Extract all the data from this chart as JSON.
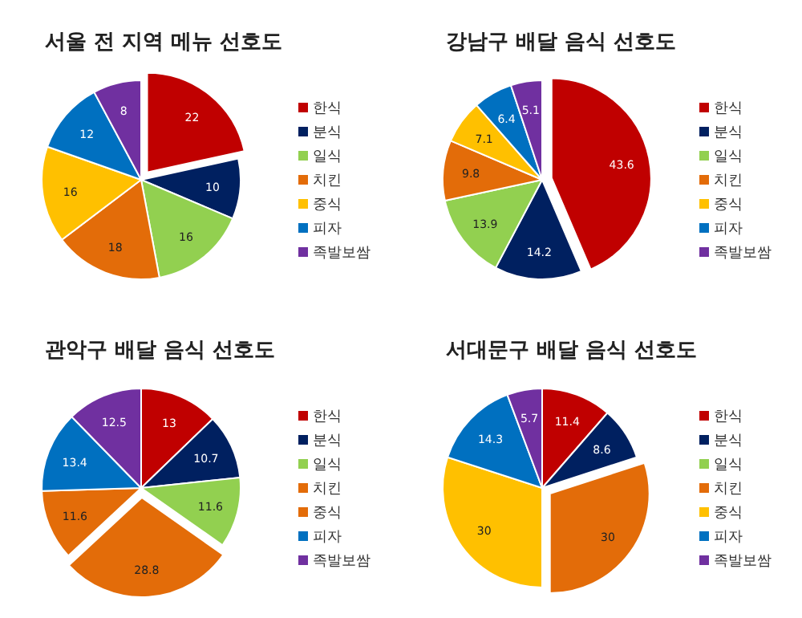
{
  "chart_data": [
    {
      "type": "pie",
      "title": "서울 전 지역 메뉴 선호도",
      "categories": [
        "한식",
        "분식",
        "일식",
        "치킨",
        "중식",
        "피자",
        "족발보쌈"
      ],
      "values": [
        22,
        10,
        16,
        18,
        16,
        12,
        8
      ],
      "colors": [
        "#c00000",
        "#002060",
        "#92d050",
        "#e36c09",
        "#ffc000",
        "#0070c0",
        "#7030a0"
      ],
      "data_labels": true,
      "legend": "right"
    },
    {
      "type": "pie",
      "title": "강남구 배달 음식 선호도",
      "categories": [
        "한식",
        "분식",
        "일식",
        "치킨",
        "중식",
        "피자",
        "족발보쌈"
      ],
      "values": [
        43.6,
        14.2,
        13.9,
        9.8,
        7.1,
        6.4,
        5.1
      ],
      "colors": [
        "#c00000",
        "#002060",
        "#92d050",
        "#e36c09",
        "#ffc000",
        "#0070c0",
        "#7030a0"
      ],
      "data_labels": true,
      "legend": "right"
    },
    {
      "type": "pie",
      "title": "관악구 배달 음식 선호도",
      "categories": [
        "한식",
        "분식",
        "일식",
        "치킨",
        "중식",
        "피자",
        "족발보쌈"
      ],
      "values": [
        13.0,
        10.7,
        11.6,
        28.8,
        11.6,
        13.4,
        12.5
      ],
      "colors": [
        "#c00000",
        "#002060",
        "#92d050",
        "#e36c09",
        "#e36c09",
        "#0070c0",
        "#7030a0"
      ],
      "data_labels": true,
      "legend": "right"
    },
    {
      "type": "pie",
      "title": "서대문구 배달 음식 선호도",
      "categories": [
        "한식",
        "분식",
        "일식",
        "치킨",
        "중식",
        "피자",
        "족발보쌈"
      ],
      "values": [
        11.4,
        8.6,
        null,
        30,
        30,
        14.3,
        5.7
      ],
      "colors": [
        "#c00000",
        "#002060",
        "#92d050",
        "#e36c09",
        "#ffc000",
        "#0070c0",
        "#7030a0"
      ],
      "data_labels": true,
      "legend": "right"
    }
  ]
}
